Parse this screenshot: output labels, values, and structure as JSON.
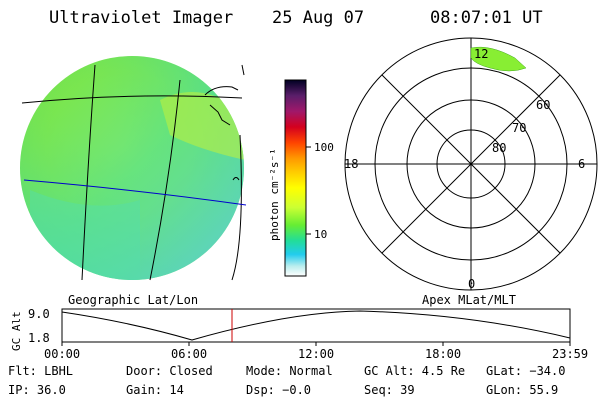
{
  "header": {
    "title": "Ultraviolet Imager",
    "date": "25 Aug 07",
    "time": "08:07:01 UT"
  },
  "geo_panel": {
    "caption": "Geographic Lat/Lon"
  },
  "colorbar": {
    "unit_label": "photon cm⁻²s⁻¹",
    "ticks": [
      "100",
      "10"
    ],
    "colors": [
      "#000033",
      "#5a1e6a",
      "#9b1a6a",
      "#c8001e",
      "#ff4400",
      "#ff9900",
      "#ffcc00",
      "#ffff00",
      "#ccff33",
      "#88ee22",
      "#44dd44",
      "#22ddaa",
      "#22ccee",
      "#aadddd",
      "#ffffff"
    ]
  },
  "polar_panel": {
    "caption": "Apex MLat/MLT",
    "lat_labels": [
      "60",
      "70",
      "80"
    ],
    "mlt_labels": {
      "top": "12",
      "left": "18",
      "right": "6",
      "bottom": "0"
    }
  },
  "altitude_plot": {
    "ylabel": "GC Alt",
    "y_ticks": [
      "9.0",
      "1.8"
    ],
    "x_ticks": [
      "00:00",
      "06:00",
      "12:00",
      "18:00",
      "23:59"
    ],
    "marker_color": "#cc0000"
  },
  "info": {
    "row1": {
      "flt": "Flt: LBHL",
      "door": "Door: Closed",
      "mode": "Mode: Normal",
      "gcalt": "GC Alt: 4.5 Re",
      "glat": "GLat: −34.0"
    },
    "row2": {
      "ip": "IP: 36.0",
      "gain": "Gain: 14",
      "dsp": "Dsp:   −0.0",
      "seq": "Seq: 39",
      "glon": "GLon:  55.9"
    }
  }
}
